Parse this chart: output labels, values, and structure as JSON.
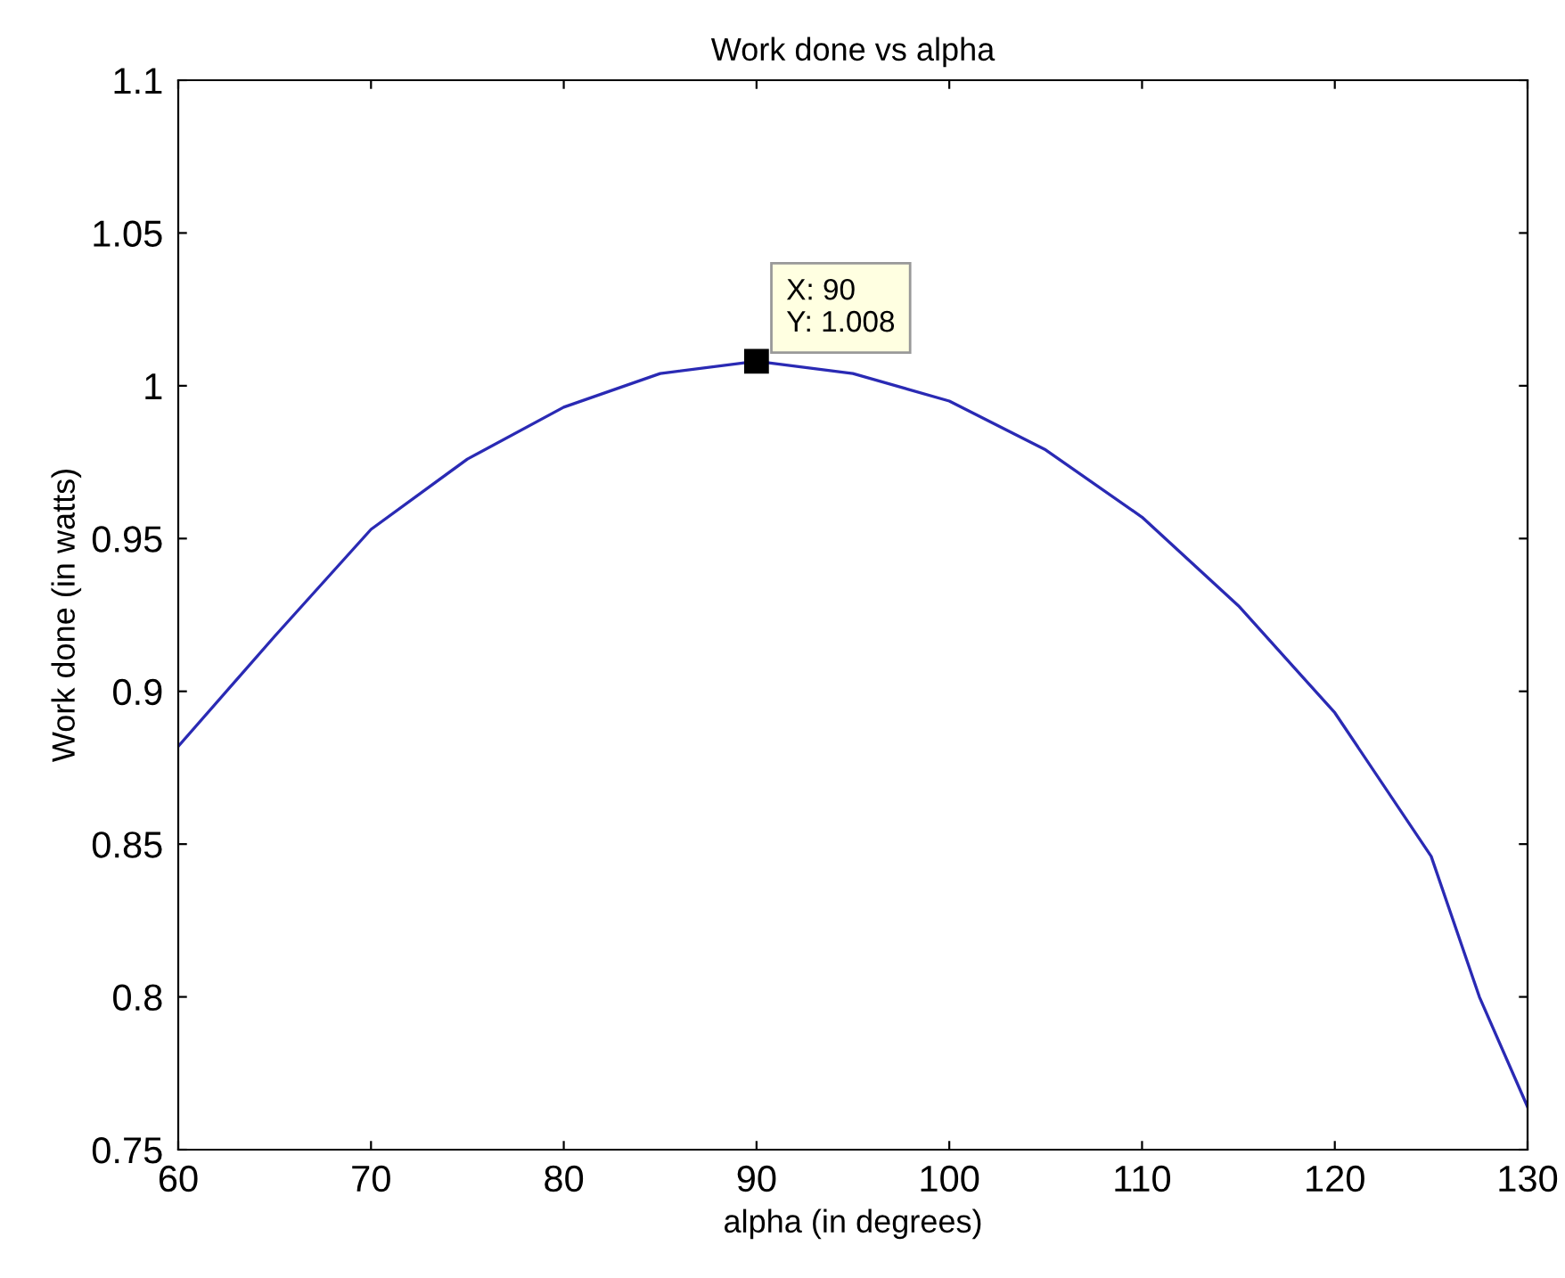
{
  "chart_data": {
    "type": "line",
    "title": "Work done vs alpha",
    "xlabel": "alpha (in degrees)",
    "ylabel": "Work done (in watts)",
    "x": [
      60,
      65,
      70,
      75,
      80,
      85,
      90,
      95,
      100,
      105,
      110,
      115,
      120,
      125,
      127.5,
      130
    ],
    "series": [
      {
        "color": "#2a2ab4",
        "values": [
          0.882,
          0.918,
          0.953,
          0.976,
          0.993,
          1.004,
          1.008,
          1.004,
          0.995,
          0.979,
          0.957,
          0.928,
          0.893,
          0.846,
          0.8,
          0.764
        ]
      }
    ],
    "xlim": [
      60,
      130
    ],
    "ylim": [
      0.75,
      1.1
    ],
    "xticks": [
      60,
      70,
      80,
      90,
      100,
      110,
      120,
      130
    ],
    "yticks": [
      0.75,
      0.8,
      0.85,
      0.9,
      0.95,
      1,
      1.05,
      1.1
    ],
    "annotations": [
      {
        "text": "X: 90\nY: 1.008",
        "x": 90,
        "y": 1.008
      }
    ],
    "grid": false,
    "legend": false,
    "marker": "none",
    "line_style": "solid"
  }
}
